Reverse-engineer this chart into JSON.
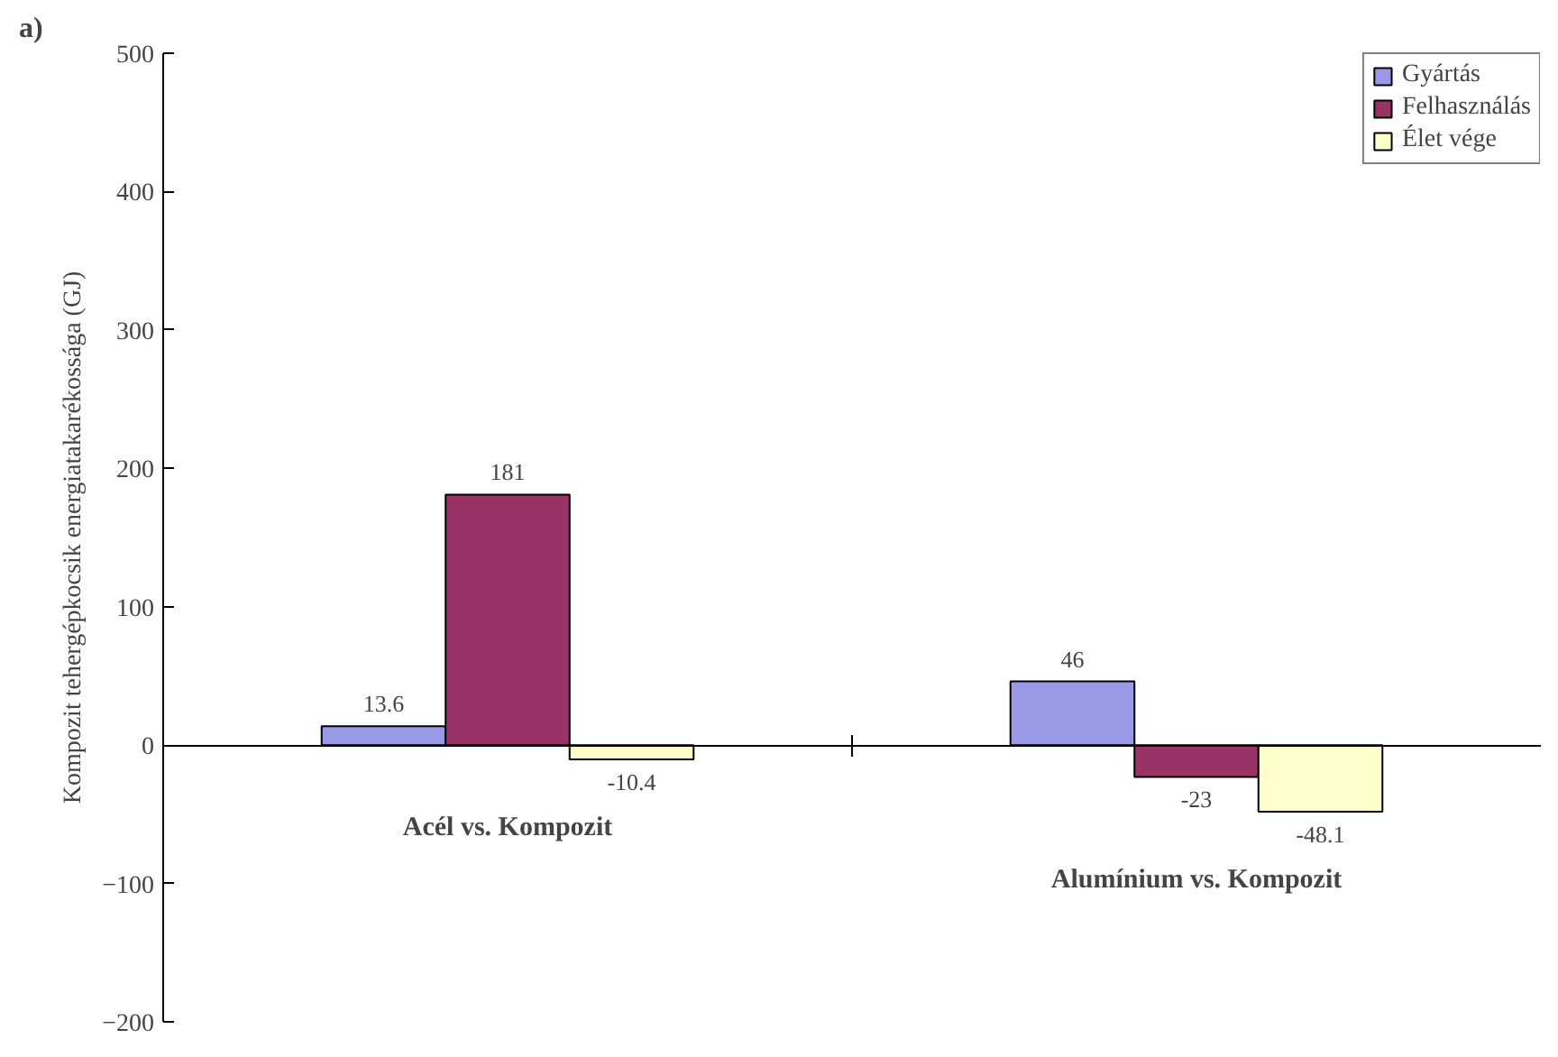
{
  "chart_data": {
    "type": "bar",
    "annotations": [
      "a)"
    ],
    "ylabel": "Kompozit tehergépkocsik energiatakarékossága (GJ)",
    "categories": [
      "Acél vs. Kompozit",
      "Alumínium vs. Kompozit"
    ],
    "series": [
      {
        "name": "Gyártás",
        "color": "#9999e6",
        "values": [
          13.6,
          46
        ]
      },
      {
        "name": "Felhasználás",
        "color": "#993366",
        "values": [
          181,
          -23
        ]
      },
      {
        "name": "Élet vége",
        "color": "#ffffcc",
        "values": [
          -10.4,
          -48.1
        ]
      }
    ],
    "ylim": [
      -200,
      500
    ],
    "yticks": [
      -200,
      -100,
      0,
      100,
      200,
      300,
      400,
      500
    ],
    "data_labels": true,
    "legend": "top right"
  }
}
